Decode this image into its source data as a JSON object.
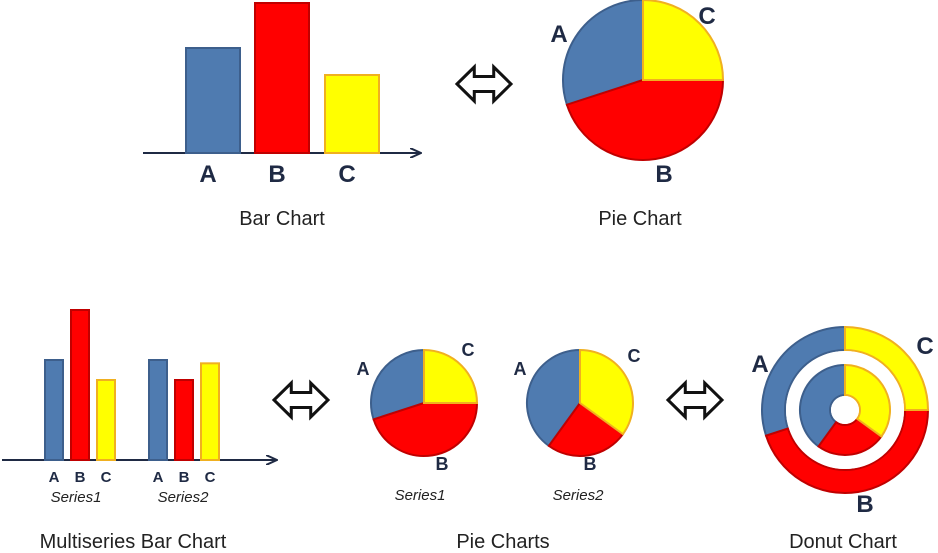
{
  "colors": {
    "A": "#4f7bb0",
    "B": "#ff0000",
    "C": "#ffff00",
    "B_border": "#c00000",
    "C_border": "#f0b020",
    "A_border": "#3d5f8c"
  },
  "bar_chart": {
    "caption": "Bar Chart",
    "categories": [
      "A",
      "B",
      "C"
    ],
    "values": [
      70,
      100,
      52
    ]
  },
  "pie_chart": {
    "caption": "Pie Chart",
    "labels": [
      "A",
      "B",
      "C"
    ],
    "values": [
      30,
      45,
      25
    ]
  },
  "multiseries_bar_chart": {
    "caption": "Multiseries Bar Chart",
    "categories": [
      "A",
      "B",
      "C"
    ],
    "series": [
      {
        "name": "Series1",
        "values": [
          60,
          90,
          48
        ]
      },
      {
        "name": "Series2",
        "values": [
          60,
          48,
          58
        ]
      }
    ]
  },
  "pie_charts": {
    "caption": "Pie Charts",
    "labels": [
      "A",
      "B",
      "C"
    ],
    "series": [
      {
        "name": "Series1",
        "values": [
          30,
          45,
          25
        ]
      },
      {
        "name": "Series2",
        "values": [
          40,
          25,
          35
        ]
      }
    ]
  },
  "donut_chart": {
    "caption": "Donut Chart",
    "labels": [
      "A",
      "B",
      "C"
    ],
    "outer": [
      30,
      45,
      25
    ],
    "inner": [
      40,
      25,
      35
    ]
  },
  "icons": {
    "equivalence": "double-arrow-icon"
  }
}
